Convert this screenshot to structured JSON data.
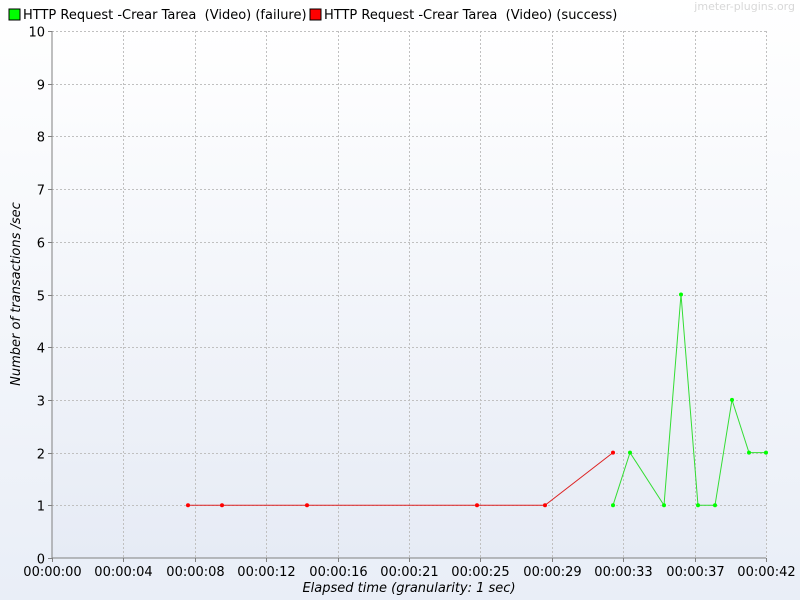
{
  "watermark": "jmeter-plugins.org",
  "colors": {
    "failure": "#00ff00",
    "success": "#ff0000",
    "failure_line": "#33dd33",
    "success_line": "#dd2222"
  },
  "chart_data": {
    "type": "line",
    "xlabel": "Elapsed time (granularity: 1 sec)",
    "ylabel": "Number of transactions /sec",
    "xlim": [
      0,
      42
    ],
    "ylim": [
      0,
      10
    ],
    "x_tick_values": [
      0,
      4.2,
      8.4,
      12.6,
      16.8,
      21,
      25.2,
      29.4,
      33.6,
      37.8,
      42
    ],
    "x_tick_labels": [
      "00:00:00",
      "00:00:04",
      "00:00:08",
      "00:00:12",
      "00:00:16",
      "00:00:21",
      "00:00:25",
      "00:00:29",
      "00:00:33",
      "00:00:37",
      "00:00:42"
    ],
    "y_tick_values": [
      0,
      1,
      2,
      3,
      4,
      5,
      6,
      7,
      8,
      9,
      10
    ],
    "y_tick_labels": [
      "0",
      "1",
      "2",
      "3",
      "4",
      "5",
      "6",
      "7",
      "8",
      "9",
      "10"
    ],
    "grid": true,
    "legend_position": "top-left",
    "series": [
      {
        "name": "HTTP Request -Crear Tarea  (Video) (failure)",
        "color": "#00ff00",
        "points": [
          [
            33,
            1
          ],
          [
            34,
            2
          ],
          [
            36,
            1
          ],
          [
            37,
            5
          ],
          [
            38,
            1
          ],
          [
            39,
            1
          ],
          [
            40,
            3
          ],
          [
            41,
            2
          ],
          [
            42,
            2
          ]
        ]
      },
      {
        "name": "HTTP Request -Crear Tarea  (Video) (success)",
        "color": "#ff0000",
        "points": [
          [
            8,
            1
          ],
          [
            10,
            1
          ],
          [
            15,
            1
          ],
          [
            25,
            1
          ],
          [
            29,
            1
          ],
          [
            33,
            2
          ]
        ]
      }
    ]
  }
}
